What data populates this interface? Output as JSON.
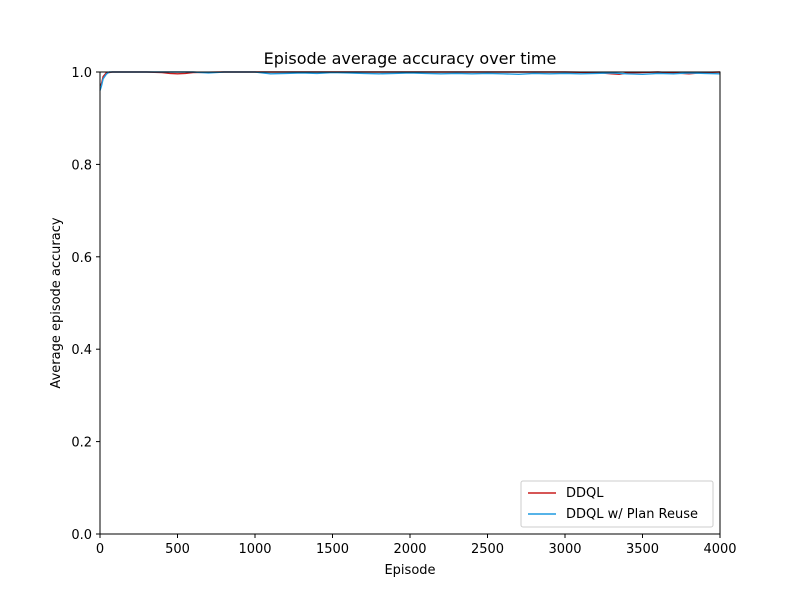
{
  "chart_data": {
    "type": "line",
    "title": "Episode average accuracy over time",
    "xlabel": "Episode",
    "ylabel": "Average episode accuracy",
    "xlim": [
      0,
      4000
    ],
    "ylim": [
      0.0,
      1.0
    ],
    "xticks": [
      0,
      500,
      1000,
      1500,
      2000,
      2500,
      3000,
      3500,
      4000
    ],
    "yticks": [
      "0.0",
      "0.2",
      "0.4",
      "0.6",
      "0.8",
      "1.0"
    ],
    "grid": false,
    "legend_position": "lower-right",
    "series": [
      {
        "name": "DDQL",
        "color": "#c81e1e",
        "x": [
          0,
          10,
          20,
          40,
          80,
          150,
          300,
          400,
          450,
          500,
          550,
          600,
          800,
          1000,
          1500,
          2000,
          2500,
          3000,
          3200,
          3300,
          3350,
          3400,
          3600,
          3700,
          3800,
          3900,
          4000
        ],
        "y": [
          0.97,
          0.975,
          0.99,
          0.998,
          1.0,
          1.0,
          1.0,
          0.999,
          0.997,
          0.996,
          0.997,
          0.999,
          1.0,
          1.0,
          1.0,
          1.0,
          1.0,
          1.0,
          0.999,
          0.996,
          0.995,
          0.998,
          1.0,
          0.998,
          0.996,
          0.999,
          1.0
        ]
      },
      {
        "name": "DDQL w/ Plan Reuse",
        "color": "#1f9ae0",
        "x": [
          0,
          5,
          10,
          20,
          40,
          60,
          100,
          200,
          400,
          600,
          700,
          800,
          1000,
          1100,
          1200,
          1300,
          1400,
          1500,
          1600,
          1700,
          1800,
          1900,
          2000,
          2100,
          2200,
          2300,
          2400,
          2500,
          2600,
          2700,
          2800,
          2900,
          3000,
          3100,
          3200,
          3300,
          3400,
          3500,
          3600,
          3700,
          3800,
          3900,
          4000
        ],
        "y": [
          0.96,
          0.965,
          0.97,
          0.985,
          0.995,
          1.0,
          1.0,
          1.0,
          1.0,
          1.0,
          0.998,
          1.0,
          1.0,
          0.996,
          0.997,
          0.998,
          0.997,
          0.999,
          0.998,
          0.997,
          0.996,
          0.997,
          0.998,
          0.997,
          0.996,
          0.997,
          0.996,
          0.997,
          0.996,
          0.995,
          0.997,
          0.996,
          0.997,
          0.996,
          0.997,
          0.998,
          0.996,
          0.995,
          0.997,
          0.996,
          0.998,
          0.997,
          0.996
        ]
      }
    ]
  }
}
